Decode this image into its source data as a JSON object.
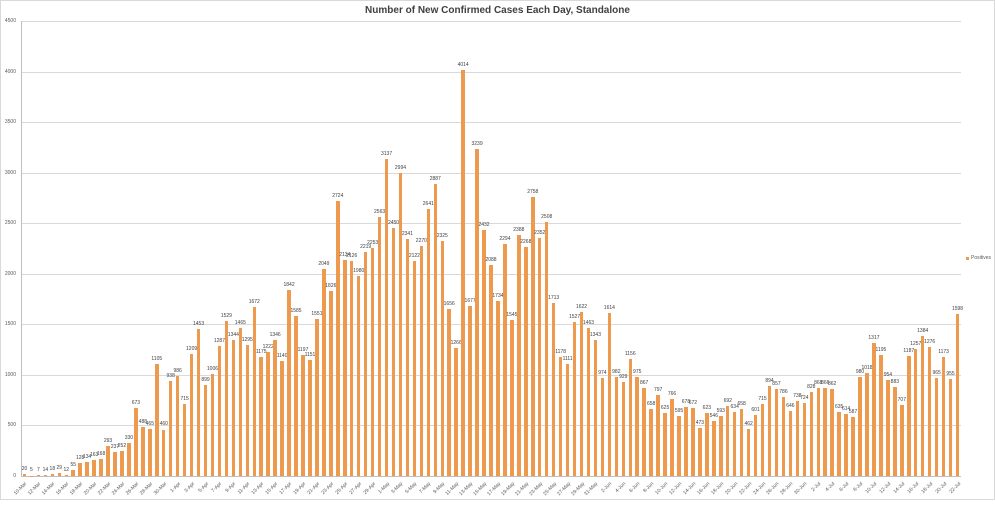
{
  "chart_data": {
    "type": "bar",
    "title": "Number of New Confirmed Cases Each Day, Standalone",
    "xlabel": "",
    "ylabel": "",
    "ylim": [
      0,
      4500
    ],
    "yticks": [
      0,
      500,
      1000,
      1500,
      2000,
      2500,
      3000,
      3500,
      4000,
      4500
    ],
    "grid": true,
    "legend_position": "right",
    "series_color": "#ed9a4f",
    "x_tick_labels": [
      "10-Mar",
      "12-Mar",
      "14-Mar",
      "16-Mar",
      "18-Mar",
      "20-Mar",
      "22-Mar",
      "24-Mar",
      "26-Mar",
      "28-Mar",
      "30-Mar",
      "1-Apr",
      "3-Apr",
      "5-Apr",
      "7-Apr",
      "9-Apr",
      "11-Apr",
      "13-Apr",
      "15-Apr",
      "17-Apr",
      "19-Apr",
      "21-Apr",
      "23-Apr",
      "25-Apr",
      "27-Apr",
      "29-Apr",
      "1-May",
      "3-May",
      "5-May",
      "7-May",
      "9-May",
      "11-May",
      "13-May",
      "15-May",
      "17-May",
      "19-May",
      "21-May",
      "23-May",
      "25-May",
      "27-May",
      "29-May",
      "31-May",
      "2-Jun",
      "4-Jun",
      "6-Jun",
      "8-Jun",
      "10-Jun",
      "12-Jun",
      "14-Jun",
      "16-Jun",
      "18-Jun",
      "20-Jun",
      "22-Jun",
      "24-Jun",
      "26-Jun",
      "28-Jun",
      "30-Jun",
      "2-Jul",
      "4-Jul",
      "6-Jul",
      "8-Jul",
      "10-Jul",
      "12-Jul",
      "14-Jul",
      "16-Jul",
      "18-Jul",
      "20-Jul",
      "22-Jul"
    ],
    "series": [
      {
        "name": "Positives",
        "values": [
          20,
          5,
          7,
          14,
          18,
          29,
          12,
          55,
          128,
          134,
          163,
          168,
          293,
          237,
          252,
          330,
          673,
          488,
          465,
          1105,
          460,
          938,
          986,
          715,
          1209,
          1453,
          899,
          1006,
          1287,
          1529,
          1344,
          1465,
          1295,
          1672,
          1175,
          1222,
          1346,
          1140,
          1842,
          1585,
          1197,
          1151,
          1551,
          2049,
          1826,
          2724,
          2134,
          2126,
          1980,
          2219,
          2253,
          2563,
          3137,
          2450,
          2994,
          2341,
          2122,
          2270,
          2641,
          2887,
          2325,
          1656,
          1266,
          4014,
          1677,
          3239,
          2432,
          2088,
          1734,
          2294,
          1545,
          2388,
          2268,
          2758,
          2352,
          2508,
          1713,
          1178,
          1111,
          1527,
          1622,
          1463,
          1343,
          974,
          1614,
          982,
          929,
          1156,
          975,
          867,
          658,
          797,
          625,
          766,
          595,
          678,
          672,
          473,
          623,
          546,
          593,
          692,
          634,
          658,
          462,
          601,
          715,
          894,
          857,
          786,
          646,
          738,
          724,
          828,
          868,
          866,
          862,
          635,
          614,
          587,
          980,
          1018,
          1317,
          1195,
          954,
          883,
          707,
          1187,
          1257,
          1384,
          1276,
          965,
          1173,
          955,
          1598
        ]
      }
    ]
  },
  "legend": {
    "label": "Positives"
  }
}
